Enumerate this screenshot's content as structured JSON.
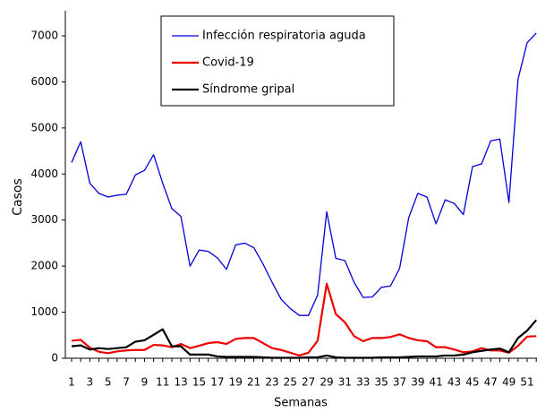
{
  "chart_data": {
    "type": "line",
    "xlabel": "Semanas",
    "ylabel": "Casos",
    "categories": [
      "1",
      null,
      "3",
      null,
      "5",
      null,
      "7",
      null,
      "9",
      null,
      "11",
      null,
      "13",
      null,
      "15",
      null,
      "17",
      null,
      "19",
      null,
      "21",
      null,
      "23",
      null,
      "25",
      null,
      "27",
      null,
      "29",
      null,
      "31",
      null,
      "33",
      null,
      "35",
      null,
      "37",
      null,
      "39",
      null,
      "41",
      null,
      "43",
      null,
      "45",
      null,
      "47",
      null,
      "49",
      null,
      "51",
      null
    ],
    "ylim": [
      0,
      7000
    ],
    "yticks": [
      0,
      1000,
      2000,
      3000,
      4000,
      5000,
      6000,
      7000
    ],
    "legend": "top",
    "series": [
      {
        "name": "Infección respiratoria aguda",
        "color": "#0000dd",
        "values": [
          4250,
          4700,
          3800,
          3580,
          3500,
          3540,
          3560,
          3980,
          4080,
          4420,
          3800,
          3250,
          3080,
          2000,
          2350,
          2320,
          2180,
          1930,
          2460,
          2500,
          2400,
          2050,
          1650,
          1280,
          1080,
          930,
          930,
          1370,
          3180,
          2170,
          2120,
          1650,
          1320,
          1330,
          1540,
          1570,
          1950,
          3050,
          3580,
          3500,
          2920,
          3440,
          3360,
          3120,
          4160,
          4220,
          4720,
          4760,
          3380,
          6060,
          6850,
          7060
        ]
      },
      {
        "name": "Covid-19",
        "color": "#ee0000",
        "values": [
          380,
          400,
          230,
          140,
          110,
          150,
          170,
          180,
          180,
          290,
          280,
          240,
          310,
          220,
          270,
          330,
          350,
          310,
          420,
          440,
          440,
          330,
          220,
          180,
          120,
          60,
          120,
          380,
          1620,
          960,
          780,
          480,
          370,
          440,
          440,
          460,
          520,
          440,
          390,
          370,
          240,
          240,
          190,
          130,
          150,
          220,
          170,
          170,
          120,
          270,
          470,
          480
        ]
      },
      {
        "name": "Síndrome gripal",
        "color": "#000000",
        "values": [
          260,
          280,
          190,
          220,
          200,
          220,
          240,
          360,
          390,
          510,
          630,
          260,
          260,
          80,
          80,
          80,
          40,
          30,
          30,
          30,
          30,
          20,
          10,
          10,
          10,
          10,
          20,
          20,
          60,
          20,
          10,
          10,
          10,
          10,
          20,
          20,
          20,
          30,
          40,
          40,
          40,
          60,
          60,
          80,
          130,
          160,
          190,
          210,
          130,
          440,
          600,
          830
        ]
      }
    ]
  }
}
